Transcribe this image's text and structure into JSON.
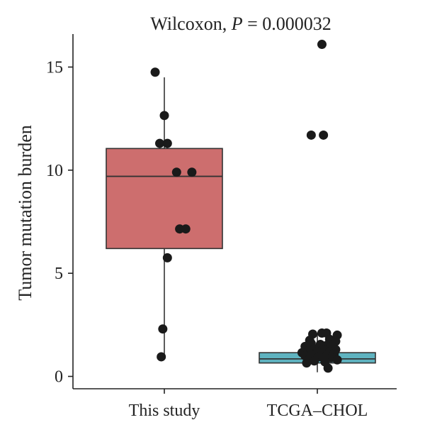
{
  "chart_data": {
    "type": "boxplot",
    "title_prefix": "Wilcoxon, ",
    "title_p": "P",
    "title_suffix": " = 0.000032",
    "xlabel": "",
    "ylabel": "Tumor mutation burden",
    "ylim": [
      -0.6,
      16.6
    ],
    "yticks": [
      0,
      5,
      10,
      15
    ],
    "categories": [
      "This study",
      "TCGA–CHOL"
    ],
    "colors": {
      "This study": "#cd6e6e",
      "TCGA–CHOL": "#5fb3c0"
    },
    "boxes": [
      {
        "category": "This study",
        "q1": 6.2,
        "median": 9.7,
        "q3": 11.05,
        "whisker_low": 0.9,
        "whisker_high": 14.5
      },
      {
        "category": "TCGA–CHOL",
        "q1": 0.65,
        "median": 0.85,
        "q3": 1.15,
        "whisker_low": 0.2,
        "whisker_high": 2.1
      }
    ],
    "points": [
      {
        "category": "This study",
        "values": [
          14.75,
          12.65,
          11.3,
          11.3,
          9.9,
          9.9,
          7.15,
          7.15,
          5.75,
          2.3,
          0.95
        ],
        "jitter": [
          -0.06,
          0.0,
          -0.03,
          0.02,
          0.08,
          0.18,
          0.1,
          0.14,
          0.02,
          -0.01,
          -0.02
        ]
      },
      {
        "category": "TCGA–CHOL",
        "values": [
          16.1,
          11.7,
          11.7,
          2.1,
          2.1,
          2.05,
          2.0,
          1.8,
          1.75,
          1.7,
          1.6,
          1.55,
          1.5,
          1.45,
          1.4,
          1.35,
          1.3,
          1.3,
          1.25,
          1.2,
          1.2,
          1.15,
          1.1,
          1.1,
          1.05,
          1.0,
          1.0,
          0.95,
          0.9,
          0.85,
          0.8,
          0.75,
          0.7,
          0.65,
          0.4
        ],
        "jitter": [
          0.03,
          -0.04,
          0.04,
          0.03,
          0.06,
          -0.03,
          0.13,
          0.08,
          -0.05,
          0.12,
          -0.04,
          0.02,
          0.06,
          -0.08,
          0.1,
          -0.02,
          0.04,
          0.12,
          -0.06,
          0.0,
          0.08,
          -0.1,
          0.03,
          0.11,
          -0.04,
          0.06,
          -0.08,
          0.01,
          0.09,
          -0.05,
          0.13,
          -0.02,
          0.05,
          -0.07,
          0.07
        ]
      }
    ]
  }
}
